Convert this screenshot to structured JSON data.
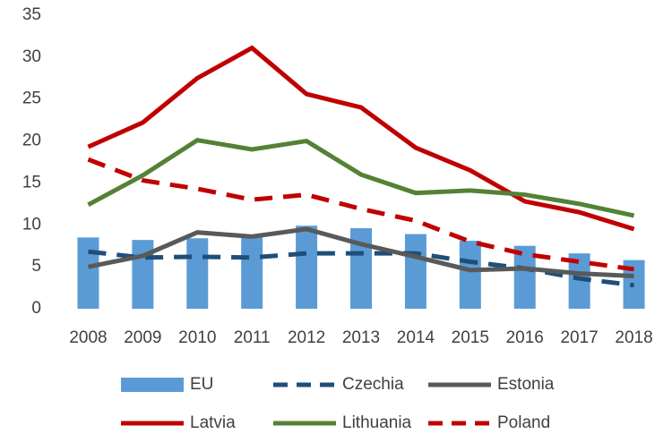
{
  "chart_data": {
    "type": "combo",
    "categories": [
      "2008",
      "2009",
      "2010",
      "2011",
      "2012",
      "2013",
      "2014",
      "2015",
      "2016",
      "2017",
      "2018"
    ],
    "ylim": [
      0,
      35
    ],
    "yticks": [
      0,
      5,
      10,
      15,
      20,
      25,
      30,
      35
    ],
    "series": [
      {
        "name": "EU",
        "type": "bar",
        "color": "#5b9bd5",
        "values": [
          8.5,
          8.2,
          8.4,
          8.6,
          9.9,
          9.6,
          8.9,
          8.1,
          7.5,
          6.6,
          5.8
        ]
      },
      {
        "name": "Czechia",
        "type": "line",
        "dash": true,
        "color": "#1f4e79",
        "values": [
          6.8,
          6.1,
          6.2,
          6.1,
          6.6,
          6.6,
          6.6,
          5.6,
          4.8,
          3.6,
          2.8
        ]
      },
      {
        "name": "Estonia",
        "type": "line",
        "dash": false,
        "color": "#595959",
        "values": [
          5.0,
          6.3,
          9.1,
          8.6,
          9.5,
          7.7,
          6.2,
          4.6,
          4.8,
          4.2,
          3.9
        ]
      },
      {
        "name": "Latvia",
        "type": "line",
        "dash": false,
        "color": "#c00000",
        "values": [
          19.3,
          22.2,
          27.5,
          31.1,
          25.6,
          24.0,
          19.2,
          16.5,
          12.8,
          11.5,
          9.5
        ]
      },
      {
        "name": "Lithuania",
        "type": "line",
        "dash": false,
        "color": "#548235",
        "values": [
          12.4,
          15.9,
          20.1,
          19.0,
          20.0,
          16.0,
          13.8,
          14.1,
          13.6,
          12.5,
          11.1
        ]
      },
      {
        "name": "Poland",
        "type": "line",
        "dash": true,
        "color": "#c00000",
        "values": [
          17.8,
          15.3,
          14.3,
          13.0,
          13.6,
          11.9,
          10.5,
          8.0,
          6.5,
          5.6,
          4.7
        ]
      }
    ]
  }
}
